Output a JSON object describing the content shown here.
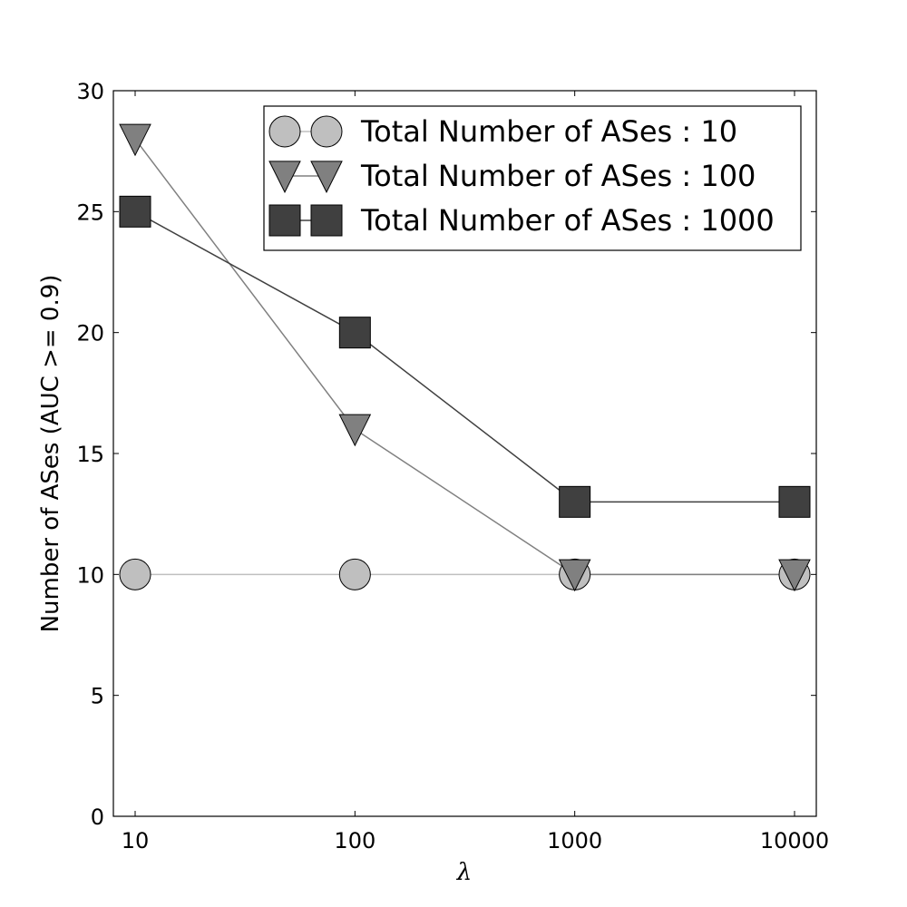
{
  "chart_data": {
    "type": "line",
    "title": "",
    "xlabel": "λ",
    "ylabel": "Number of ASes (AUC >= 0.9)",
    "x_scale": "log",
    "x": [
      10,
      100,
      1000,
      10000
    ],
    "x_tick_labels": [
      "10",
      "100",
      "1000",
      "10000"
    ],
    "ylim": [
      0,
      30
    ],
    "y_ticks": [
      0,
      5,
      10,
      15,
      20,
      25,
      30
    ],
    "grid": false,
    "legend_position": "top-right",
    "series": [
      {
        "name": "Total Number of ASes : 10",
        "marker": "circle",
        "color": "#bfbfbf",
        "line_color": "#bfbfbf",
        "values": [
          10,
          10,
          10,
          10
        ]
      },
      {
        "name": "Total Number of ASes : 100",
        "marker": "triangle-down",
        "color": "#808080",
        "line_color": "#808080",
        "values": [
          28,
          16,
          10,
          10
        ]
      },
      {
        "name": "Total Number of ASes : 1000",
        "marker": "square",
        "color": "#404040",
        "line_color": "#404040",
        "values": [
          25,
          20,
          13,
          13
        ]
      }
    ]
  }
}
